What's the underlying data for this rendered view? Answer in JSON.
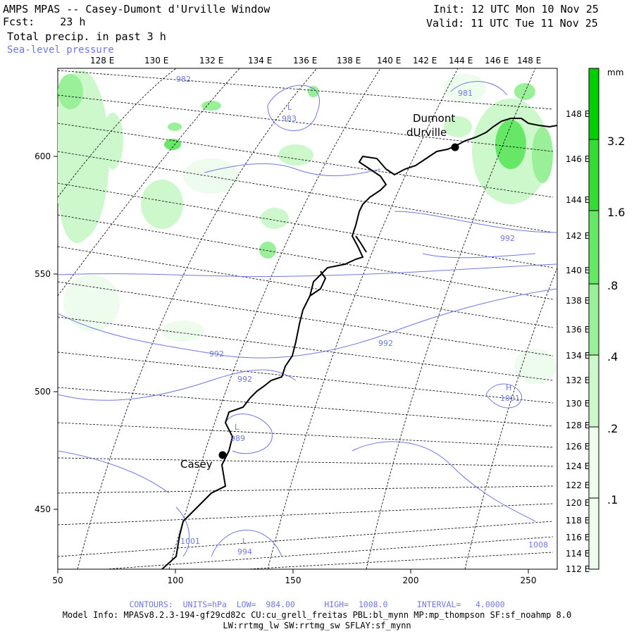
{
  "header": {
    "title": "AMPS MPAS -- Casey-Dumont d'Urville Window",
    "fcst": "Fcst:    23 h",
    "field": "Total precip. in past 3 h",
    "overlay": "Sea-level pressure",
    "init": "Init: 12 UTC Mon 10 Nov 25",
    "valid": "Valid: 11 UTC Tue 11 Nov 25"
  },
  "lon_top_labels": [
    "128 E",
    "130 E",
    "132 E",
    "134 E",
    "136 E",
    "138 E",
    "140 E",
    "142 E",
    "144 E",
    "146 E",
    "148 E"
  ],
  "lon_right_labels": [
    "148 E",
    "146 E",
    "144 E",
    "142 E",
    "140 E",
    "138 E",
    "136 E",
    "134 E",
    "132 E",
    "130 E",
    "128 E",
    "126 E",
    "124 E",
    "122 E",
    "120 E",
    "118 E",
    "116 E",
    "114 E",
    "112 E"
  ],
  "x_axis_labels": [
    "50",
    "100",
    "150",
    "200",
    "250"
  ],
  "y_axis_labels": [
    "600",
    "550",
    "500",
    "450"
  ],
  "stations": [
    {
      "name": "Dumont",
      "name2": "dUrville"
    },
    {
      "name": "Casey"
    }
  ],
  "pressure_labels": [
    "982",
    "L",
    "983",
    "981",
    "992",
    "992",
    "992",
    "992",
    "L",
    "989",
    "1001",
    "1001",
    "L",
    "994",
    "1008",
    "H"
  ],
  "colorbar": {
    "units": "mm",
    "labels": [
      "3.2",
      "1.6",
      ".8",
      ".4",
      ".2",
      ".1"
    ],
    "colors": [
      "#00d000",
      "#33dd33",
      "#66e866",
      "#99f099",
      "#ccf8cc",
      "#eefcee"
    ]
  },
  "footer": {
    "contours": "CONTOURS:  UNITS=hPa  LOW=  984.00      HIGH=  1008.0      INTERVAL=   4.0000",
    "model_info": "Model Info: MPASv8.2.3-194-gf29cd82c CU:cu_grell_freitas PBL:bl_mynn MP:mp_thompson SF:sf_noahmp 8.0",
    "model_info2": "LW:rrtmg_lw SW:rrtmg_sw SFLAY:sf_mynn"
  }
}
